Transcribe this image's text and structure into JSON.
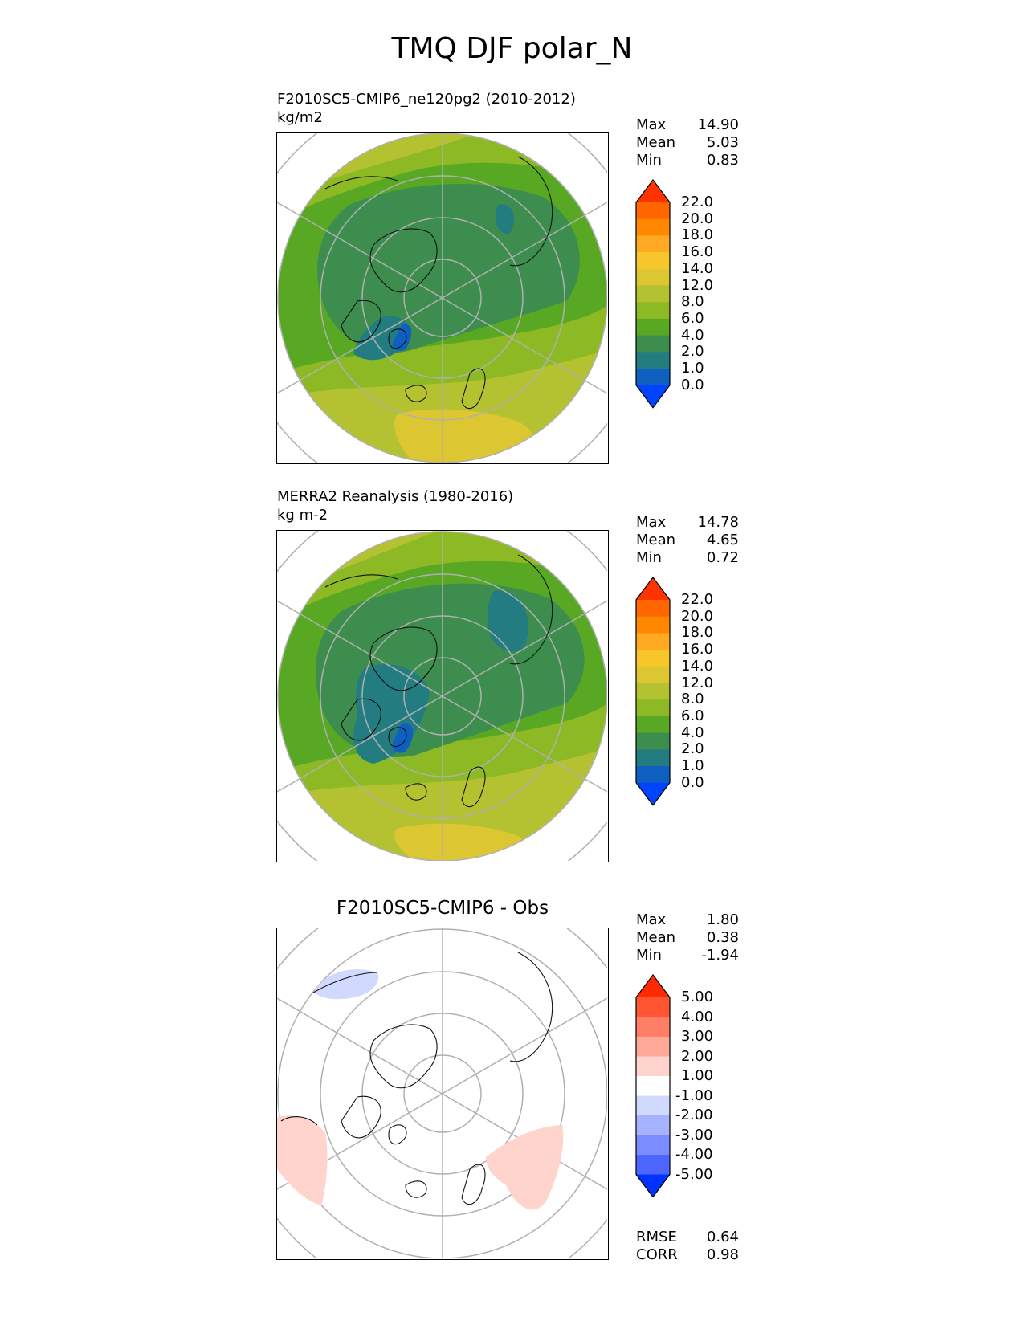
{
  "title": "TMQ DJF polar_N",
  "panels": [
    {
      "id": "test",
      "name_label": "F2010SC5-CMIP6_ne120pg2 (2010-2012)",
      "units": "kg/m2",
      "stats": [
        {
          "label": "Max",
          "value": "14.90"
        },
        {
          "label": "Mean",
          "value": "5.03"
        },
        {
          "label": "Min",
          "value": "0.83"
        }
      ],
      "colorbar": {
        "levels": [
          "22.0",
          "20.0",
          "18.0",
          "16.0",
          "14.0",
          "12.0",
          "8.0",
          "6.0",
          "4.0",
          "2.0",
          "1.0",
          "0.0"
        ],
        "colors": [
          "#ff3300",
          "#ff6600",
          "#ff8800",
          "#ffaa22",
          "#f7c62a",
          "#dcc733",
          "#b4c231",
          "#8db924",
          "#58a823",
          "#3d8d4e",
          "#237d80",
          "#0f5fc0",
          "#0044ff"
        ]
      }
    },
    {
      "id": "ref",
      "name_label": "MERRA2 Reanalysis (1980-2016)",
      "units": "kg m-2",
      "stats": [
        {
          "label": "Max",
          "value": "14.78"
        },
        {
          "label": "Mean",
          "value": "4.65"
        },
        {
          "label": "Min",
          "value": "0.72"
        }
      ],
      "colorbar": {
        "levels": [
          "22.0",
          "20.0",
          "18.0",
          "16.0",
          "14.0",
          "12.0",
          "8.0",
          "6.0",
          "4.0",
          "2.0",
          "1.0",
          "0.0"
        ],
        "colors": [
          "#ff3300",
          "#ff6600",
          "#ff8800",
          "#ffaa22",
          "#f7c62a",
          "#dcc733",
          "#b4c231",
          "#8db924",
          "#58a823",
          "#3d8d4e",
          "#237d80",
          "#0f5fc0",
          "#0044ff"
        ]
      }
    },
    {
      "id": "diff",
      "title": "F2010SC5-CMIP6 - Obs",
      "stats": [
        {
          "label": "Max",
          "value": "1.80"
        },
        {
          "label": "Mean",
          "value": "0.38"
        },
        {
          "label": "Min",
          "value": "-1.94"
        }
      ],
      "colorbar": {
        "levels": [
          "5.00",
          "4.00",
          "3.00",
          "2.00",
          "1.00",
          "-1.00",
          "-2.00",
          "-3.00",
          "-4.00",
          "-5.00"
        ],
        "colors": [
          "#ff2a00",
          "#ff5533",
          "#ff7f66",
          "#ffaa99",
          "#ffd4cc",
          "#ffffff",
          "#d2d9ff",
          "#a6b3ff",
          "#7a8cff",
          "#4d66ff",
          "#0033ff"
        ]
      },
      "metrics": [
        {
          "label": "RMSE",
          "value": "0.64"
        },
        {
          "label": "CORR",
          "value": "0.98"
        }
      ]
    }
  ],
  "chart_data": {
    "type": "heatmap",
    "title": "TMQ DJF polar_N",
    "projection": "north polar stereographic",
    "variable": "TMQ",
    "season": "DJF",
    "maps": [
      {
        "name": "F2010SC5-CMIP6_ne120pg2 (2010-2012)",
        "units": "kg/m2",
        "max": 14.9,
        "mean": 5.03,
        "min": 0.83,
        "levels": [
          0.0,
          1.0,
          2.0,
          4.0,
          6.0,
          8.0,
          12.0,
          14.0,
          16.0,
          18.0,
          20.0,
          22.0
        ]
      },
      {
        "name": "MERRA2 Reanalysis (1980-2016)",
        "units": "kg m-2",
        "max": 14.78,
        "mean": 4.65,
        "min": 0.72,
        "levels": [
          0.0,
          1.0,
          2.0,
          4.0,
          6.0,
          8.0,
          12.0,
          14.0,
          16.0,
          18.0,
          20.0,
          22.0
        ]
      },
      {
        "name": "F2010SC5-CMIP6 - Obs",
        "max": 1.8,
        "mean": 0.38,
        "min": -1.94,
        "rmse": 0.64,
        "corr": 0.98,
        "levels": [
          -5.0,
          -4.0,
          -3.0,
          -2.0,
          -1.0,
          1.0,
          2.0,
          3.0,
          4.0,
          5.0
        ]
      }
    ]
  }
}
